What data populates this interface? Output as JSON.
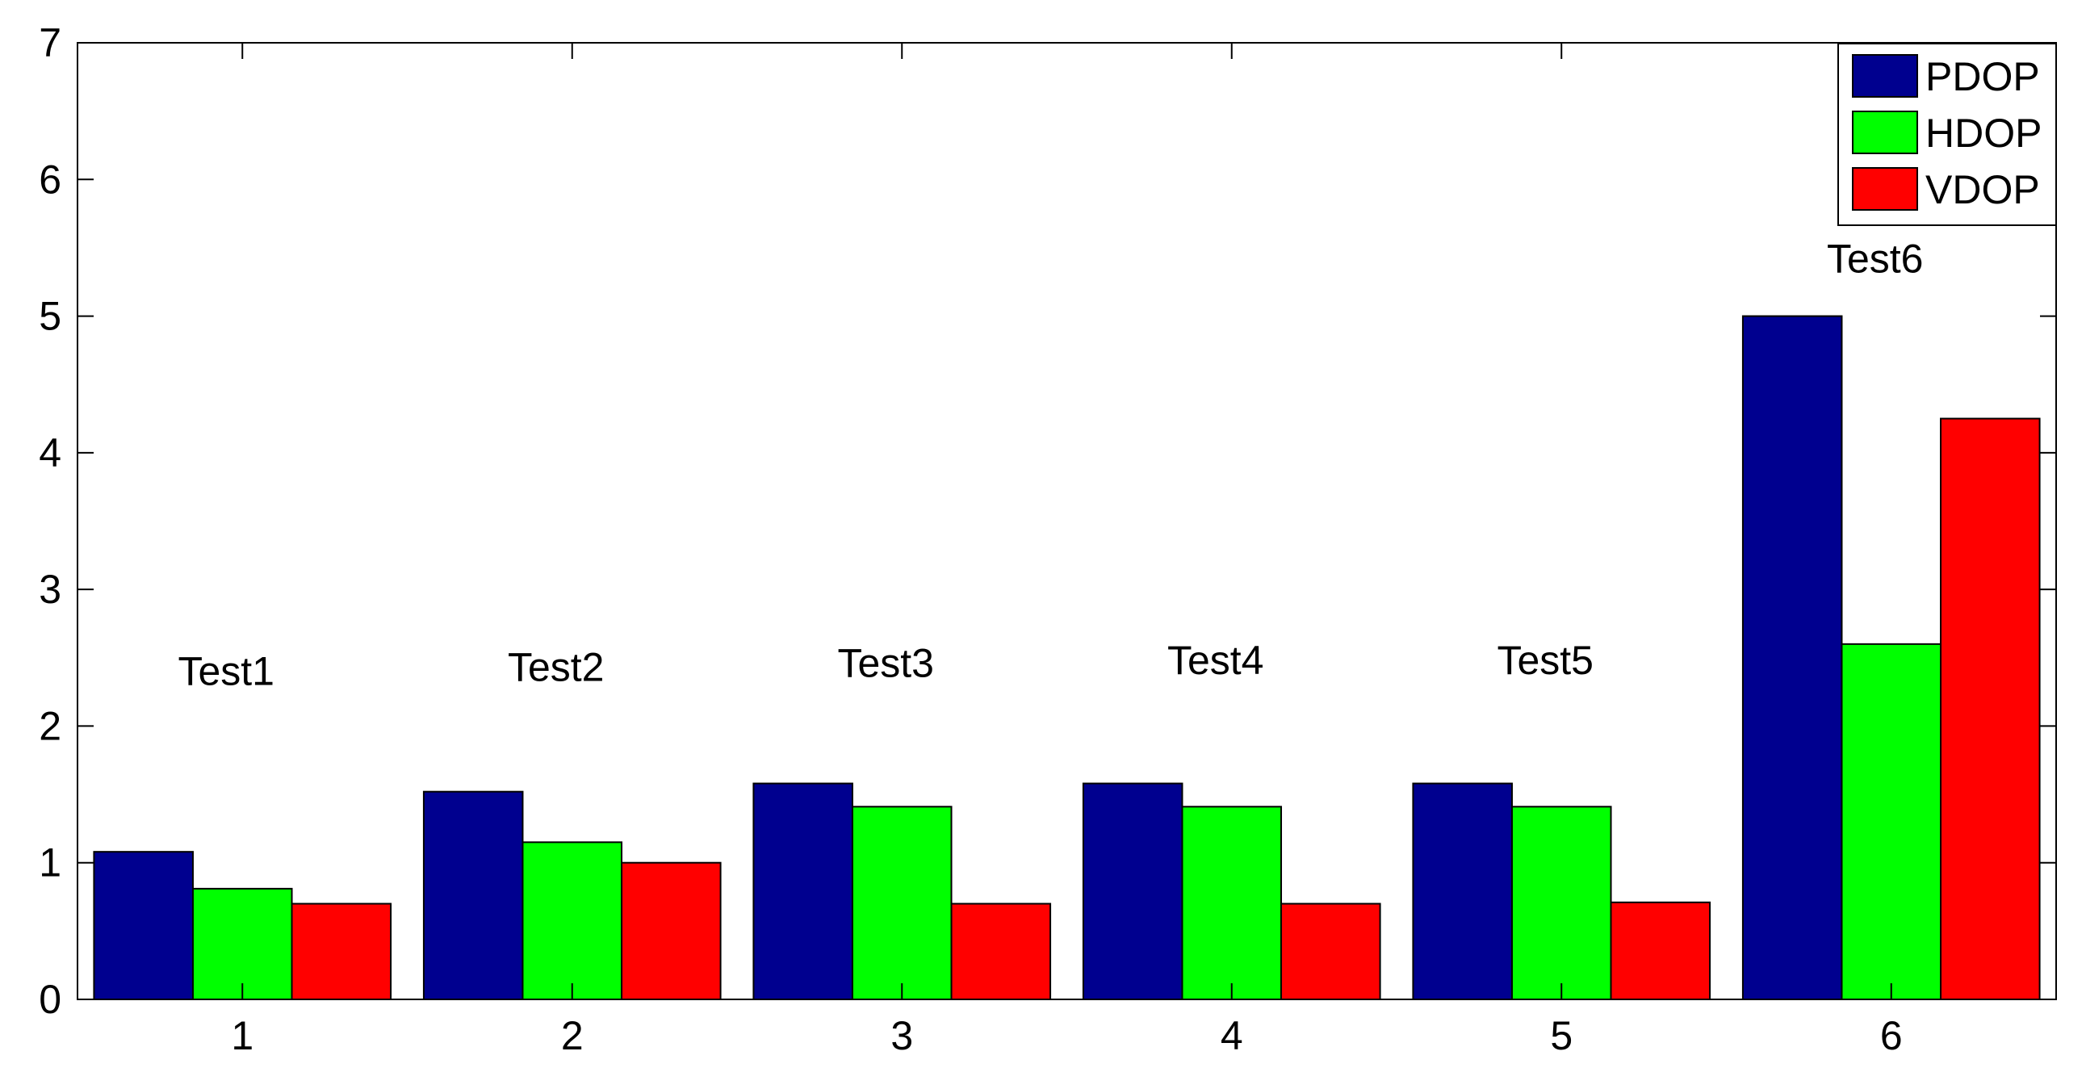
{
  "chart_data": {
    "type": "bar",
    "title": "",
    "xlabel": "",
    "ylabel": "",
    "categories": [
      "1",
      "2",
      "3",
      "4",
      "5",
      "6"
    ],
    "series": [
      {
        "name": "PDOP",
        "color": "#00008F",
        "values": [
          1.08,
          1.52,
          1.58,
          1.58,
          1.58,
          5.0
        ]
      },
      {
        "name": "HDOP",
        "color": "#00FF00",
        "values": [
          0.81,
          1.15,
          1.41,
          1.41,
          1.41,
          2.6
        ]
      },
      {
        "name": "VDOP",
        "color": "#FF0000",
        "values": [
          0.7,
          1.0,
          0.7,
          0.7,
          0.71,
          4.25
        ]
      }
    ],
    "ylim": [
      0,
      7
    ],
    "yticks": [
      0,
      1,
      2,
      3,
      4,
      5,
      6,
      7
    ],
    "xlim": [
      0.5,
      6.5
    ],
    "annotations": [
      {
        "text": "Test1",
        "x": 1,
        "y": 2.3
      },
      {
        "text": "Test2",
        "x": 2,
        "y": 2.33
      },
      {
        "text": "Test3",
        "x": 3,
        "y": 2.36
      },
      {
        "text": "Test4",
        "x": 4,
        "y": 2.38
      },
      {
        "text": "Test5",
        "x": 5,
        "y": 2.38
      },
      {
        "text": "Test6",
        "x": 6,
        "y": 5.32
      }
    ],
    "legend_position": "top-right",
    "grid": false
  }
}
